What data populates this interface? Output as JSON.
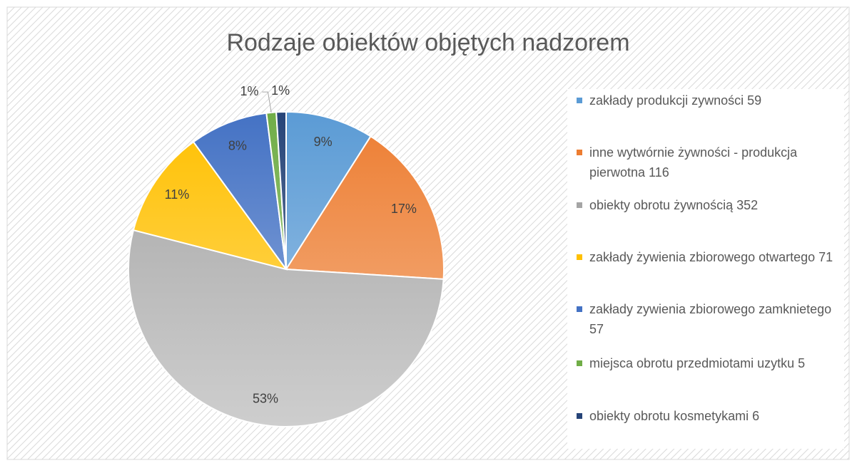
{
  "chart_data": {
    "type": "pie",
    "title": "Rodzaje obiektów objętych nadzorem",
    "categories": [
      "zakłady produkcji zywności 59",
      "inne wytwórnie żywności - produkcja pierwotna 116",
      "obiekty obrotu żywnością 352",
      "zakłady żywienia zbiorowego otwartego 71",
      "zakłady zywienia zbiorowego zamknietego 57",
      "miejsca obrotu przedmiotami uzytku 5",
      "obiekty obrotu kosmetykami 6"
    ],
    "values": [
      9,
      17,
      53,
      11,
      8,
      1,
      1
    ],
    "value_labels": [
      "9%",
      "17%",
      "53%",
      "11%",
      "8%",
      "1%",
      "1%"
    ],
    "colors": [
      "#5b9bd5",
      "#ed7d31",
      "#a5a5a5",
      "#ffc000",
      "#4472c4",
      "#70ad47",
      "#264478"
    ],
    "legend": "right"
  }
}
